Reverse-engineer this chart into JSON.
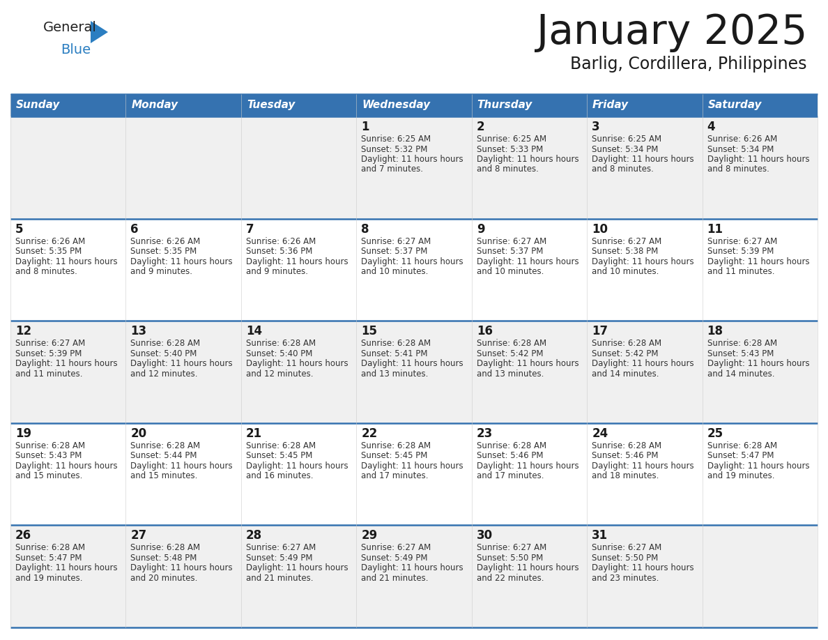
{
  "title": "January 2025",
  "subtitle": "Barlig, Cordillera, Philippines",
  "header_bg": "#3572B0",
  "header_text_color": "#FFFFFF",
  "odd_row_bg": "#F0F0F0",
  "even_row_bg": "#FFFFFF",
  "cell_border_color": "#3572B0",
  "day_headers": [
    "Sunday",
    "Monday",
    "Tuesday",
    "Wednesday",
    "Thursday",
    "Friday",
    "Saturday"
  ],
  "logo_color1": "#222222",
  "logo_color2": "#2B7EC1",
  "calendar_data": [
    [
      {
        "day": "",
        "sunrise": "",
        "sunset": "",
        "daylight": ""
      },
      {
        "day": "",
        "sunrise": "",
        "sunset": "",
        "daylight": ""
      },
      {
        "day": "",
        "sunrise": "",
        "sunset": "",
        "daylight": ""
      },
      {
        "day": "1",
        "sunrise": "6:25 AM",
        "sunset": "5:32 PM",
        "daylight": "11 hours and 7 minutes."
      },
      {
        "day": "2",
        "sunrise": "6:25 AM",
        "sunset": "5:33 PM",
        "daylight": "11 hours and 8 minutes."
      },
      {
        "day": "3",
        "sunrise": "6:25 AM",
        "sunset": "5:34 PM",
        "daylight": "11 hours and 8 minutes."
      },
      {
        "day": "4",
        "sunrise": "6:26 AM",
        "sunset": "5:34 PM",
        "daylight": "11 hours and 8 minutes."
      }
    ],
    [
      {
        "day": "5",
        "sunrise": "6:26 AM",
        "sunset": "5:35 PM",
        "daylight": "11 hours and 8 minutes."
      },
      {
        "day": "6",
        "sunrise": "6:26 AM",
        "sunset": "5:35 PM",
        "daylight": "11 hours and 9 minutes."
      },
      {
        "day": "7",
        "sunrise": "6:26 AM",
        "sunset": "5:36 PM",
        "daylight": "11 hours and 9 minutes."
      },
      {
        "day": "8",
        "sunrise": "6:27 AM",
        "sunset": "5:37 PM",
        "daylight": "11 hours and 10 minutes."
      },
      {
        "day": "9",
        "sunrise": "6:27 AM",
        "sunset": "5:37 PM",
        "daylight": "11 hours and 10 minutes."
      },
      {
        "day": "10",
        "sunrise": "6:27 AM",
        "sunset": "5:38 PM",
        "daylight": "11 hours and 10 minutes."
      },
      {
        "day": "11",
        "sunrise": "6:27 AM",
        "sunset": "5:39 PM",
        "daylight": "11 hours and 11 minutes."
      }
    ],
    [
      {
        "day": "12",
        "sunrise": "6:27 AM",
        "sunset": "5:39 PM",
        "daylight": "11 hours and 11 minutes."
      },
      {
        "day": "13",
        "sunrise": "6:28 AM",
        "sunset": "5:40 PM",
        "daylight": "11 hours and 12 minutes."
      },
      {
        "day": "14",
        "sunrise": "6:28 AM",
        "sunset": "5:40 PM",
        "daylight": "11 hours and 12 minutes."
      },
      {
        "day": "15",
        "sunrise": "6:28 AM",
        "sunset": "5:41 PM",
        "daylight": "11 hours and 13 minutes."
      },
      {
        "day": "16",
        "sunrise": "6:28 AM",
        "sunset": "5:42 PM",
        "daylight": "11 hours and 13 minutes."
      },
      {
        "day": "17",
        "sunrise": "6:28 AM",
        "sunset": "5:42 PM",
        "daylight": "11 hours and 14 minutes."
      },
      {
        "day": "18",
        "sunrise": "6:28 AM",
        "sunset": "5:43 PM",
        "daylight": "11 hours and 14 minutes."
      }
    ],
    [
      {
        "day": "19",
        "sunrise": "6:28 AM",
        "sunset": "5:43 PM",
        "daylight": "11 hours and 15 minutes."
      },
      {
        "day": "20",
        "sunrise": "6:28 AM",
        "sunset": "5:44 PM",
        "daylight": "11 hours and 15 minutes."
      },
      {
        "day": "21",
        "sunrise": "6:28 AM",
        "sunset": "5:45 PM",
        "daylight": "11 hours and 16 minutes."
      },
      {
        "day": "22",
        "sunrise": "6:28 AM",
        "sunset": "5:45 PM",
        "daylight": "11 hours and 17 minutes."
      },
      {
        "day": "23",
        "sunrise": "6:28 AM",
        "sunset": "5:46 PM",
        "daylight": "11 hours and 17 minutes."
      },
      {
        "day": "24",
        "sunrise": "6:28 AM",
        "sunset": "5:46 PM",
        "daylight": "11 hours and 18 minutes."
      },
      {
        "day": "25",
        "sunrise": "6:28 AM",
        "sunset": "5:47 PM",
        "daylight": "11 hours and 19 minutes."
      }
    ],
    [
      {
        "day": "26",
        "sunrise": "6:28 AM",
        "sunset": "5:47 PM",
        "daylight": "11 hours and 19 minutes."
      },
      {
        "day": "27",
        "sunrise": "6:28 AM",
        "sunset": "5:48 PM",
        "daylight": "11 hours and 20 minutes."
      },
      {
        "day": "28",
        "sunrise": "6:27 AM",
        "sunset": "5:49 PM",
        "daylight": "11 hours and 21 minutes."
      },
      {
        "day": "29",
        "sunrise": "6:27 AM",
        "sunset": "5:49 PM",
        "daylight": "11 hours and 21 minutes."
      },
      {
        "day": "30",
        "sunrise": "6:27 AM",
        "sunset": "5:50 PM",
        "daylight": "11 hours and 22 minutes."
      },
      {
        "day": "31",
        "sunrise": "6:27 AM",
        "sunset": "5:50 PM",
        "daylight": "11 hours and 23 minutes."
      },
      {
        "day": "",
        "sunrise": "",
        "sunset": "",
        "daylight": ""
      }
    ]
  ]
}
